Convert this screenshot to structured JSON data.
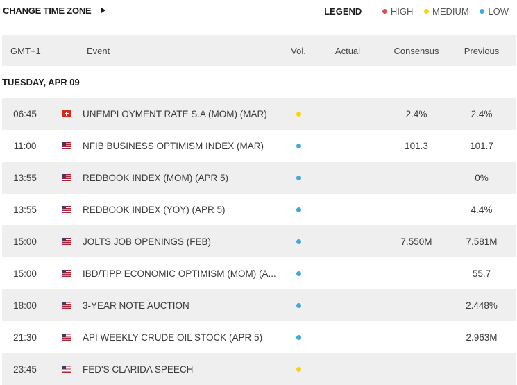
{
  "colors": {
    "high": "#d9534f",
    "medium": "#f5d60a",
    "low": "#3fa9dd"
  },
  "topbar": {
    "change_time_zone": "CHANGE TIME ZONE"
  },
  "legend": {
    "title": "LEGEND",
    "high": "HIGH",
    "medium": "MEDIUM",
    "low": "LOW"
  },
  "header": {
    "timezone": "GMT+1",
    "event": "Event",
    "vol": "Vol.",
    "actual": "Actual",
    "consensus": "Consensus",
    "previous": "Previous"
  },
  "date_label": "TUESDAY, APR 09",
  "events": [
    {
      "time": "06:45",
      "flag": "ch-flag-icon",
      "event": "UNEMPLOYMENT RATE S.A (MOM) (MAR)",
      "volatility": "medium",
      "actual": "",
      "consensus": "2.4%",
      "previous": "2.4%"
    },
    {
      "time": "11:00",
      "flag": "us-flag-icon",
      "event": "NFIB BUSINESS OPTIMISM INDEX (MAR)",
      "volatility": "low",
      "actual": "",
      "consensus": "101.3",
      "previous": "101.7"
    },
    {
      "time": "13:55",
      "flag": "us-flag-icon",
      "event": "REDBOOK INDEX (MOM) (APR 5)",
      "volatility": "low",
      "actual": "",
      "consensus": "",
      "previous": "0%"
    },
    {
      "time": "13:55",
      "flag": "us-flag-icon",
      "event": "REDBOOK INDEX (YOY) (APR 5)",
      "volatility": "low",
      "actual": "",
      "consensus": "",
      "previous": "4.4%"
    },
    {
      "time": "15:00",
      "flag": "us-flag-icon",
      "event": "JOLTS JOB OPENINGS (FEB)",
      "volatility": "low",
      "actual": "",
      "consensus": "7.550M",
      "previous": "7.581M"
    },
    {
      "time": "15:00",
      "flag": "us-flag-icon",
      "event": "IBD/TIPP ECONOMIC OPTIMISM (MOM) (A...",
      "volatility": "low",
      "actual": "",
      "consensus": "",
      "previous": "55.7"
    },
    {
      "time": "18:00",
      "flag": "us-flag-icon",
      "event": "3-YEAR NOTE AUCTION",
      "volatility": "low",
      "actual": "",
      "consensus": "",
      "previous": "2.448%"
    },
    {
      "time": "21:30",
      "flag": "us-flag-icon",
      "event": "API WEEKLY CRUDE OIL STOCK (APR 5)",
      "volatility": "low",
      "actual": "",
      "consensus": "",
      "previous": "2.963M"
    },
    {
      "time": "23:45",
      "flag": "us-flag-icon",
      "event": "FED'S CLARIDA SPEECH",
      "volatility": "medium",
      "actual": "",
      "consensus": "",
      "previous": ""
    }
  ]
}
